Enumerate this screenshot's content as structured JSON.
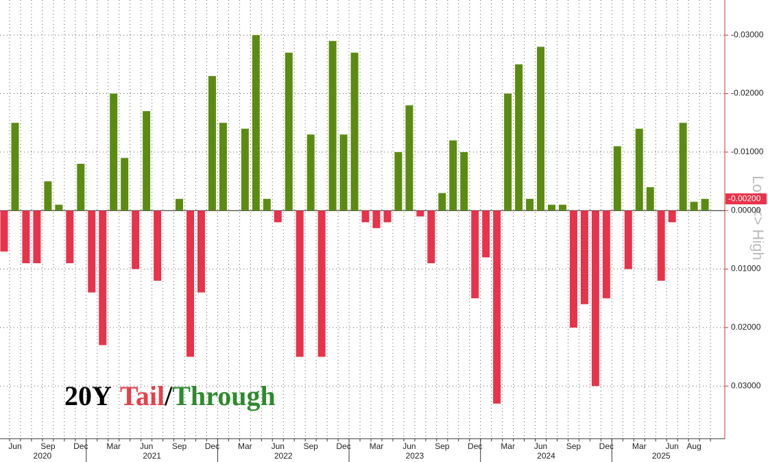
{
  "chart_data": {
    "type": "bar",
    "title_parts": [
      {
        "text": "20Y",
        "color": "#000000"
      },
      {
        "text": "Tail",
        "color": "#e8404a"
      },
      {
        "text": "/",
        "color": "#000000"
      },
      {
        "text": "Through",
        "color": "#2e8b2e"
      }
    ],
    "y_axis_label": "Low <> High",
    "categories": [
      null,
      "Jun",
      null,
      null,
      "Sep",
      null,
      null,
      "Dec",
      null,
      null,
      "Mar",
      null,
      null,
      "Jun",
      null,
      null,
      "Sep",
      null,
      null,
      "Dec",
      null,
      null,
      "Mar",
      null,
      null,
      "Jun",
      null,
      null,
      "Sep",
      null,
      null,
      "Dec",
      null,
      null,
      "Mar",
      null,
      null,
      "Jun",
      null,
      null,
      "Sep",
      null,
      null,
      "Dec",
      null,
      null,
      "Mar",
      null,
      null,
      "Jun",
      null,
      null,
      "Sep",
      null,
      null,
      "Dec",
      null,
      null,
      "Mar",
      null,
      null,
      "Jun",
      null,
      "Aug",
      null
    ],
    "years": [
      "2020",
      "2021",
      "2022",
      "2023",
      "2024",
      "2025"
    ],
    "values": [
      0.007,
      -0.015,
      0.009,
      0.009,
      -0.005,
      -0.001,
      0.009,
      -0.008,
      0.014,
      0.023,
      -0.02,
      -0.009,
      0.01,
      -0.017,
      0.012,
      null,
      -0.002,
      0.025,
      0.014,
      -0.023,
      -0.015,
      null,
      -0.014,
      -0.03,
      -0.002,
      0.002,
      -0.027,
      0.025,
      -0.013,
      0.025,
      -0.029,
      -0.013,
      -0.027,
      0.002,
      0.003,
      0.002,
      -0.01,
      -0.018,
      0.001,
      0.009,
      -0.003,
      -0.012,
      -0.01,
      0.015,
      0.008,
      0.033,
      -0.02,
      -0.025,
      -0.002,
      -0.028,
      -0.001,
      -0.001,
      0.02,
      0.016,
      0.03,
      0.015,
      -0.011,
      0.01,
      -0.014,
      -0.004,
      0.012,
      0.002,
      -0.015,
      -0.0015,
      -0.002
    ],
    "current_label": "-0.00200",
    "positive_color": "#e8334a",
    "negative_color": "#5b8c11",
    "ylim": [
      -0.036,
      0.039
    ],
    "inverted": true,
    "yticks": [
      {
        "value": -0.03,
        "label": "-0.03000"
      },
      {
        "value": -0.02,
        "label": "-0.02000"
      },
      {
        "value": -0.01,
        "label": "-0.01000"
      },
      {
        "value": 0,
        "label": "0.00000"
      },
      {
        "value": 0.01,
        "label": "0.01000"
      },
      {
        "value": 0.02,
        "label": "0.02000"
      },
      {
        "value": 0.03,
        "label": "0.03000"
      }
    ],
    "grid": true
  }
}
